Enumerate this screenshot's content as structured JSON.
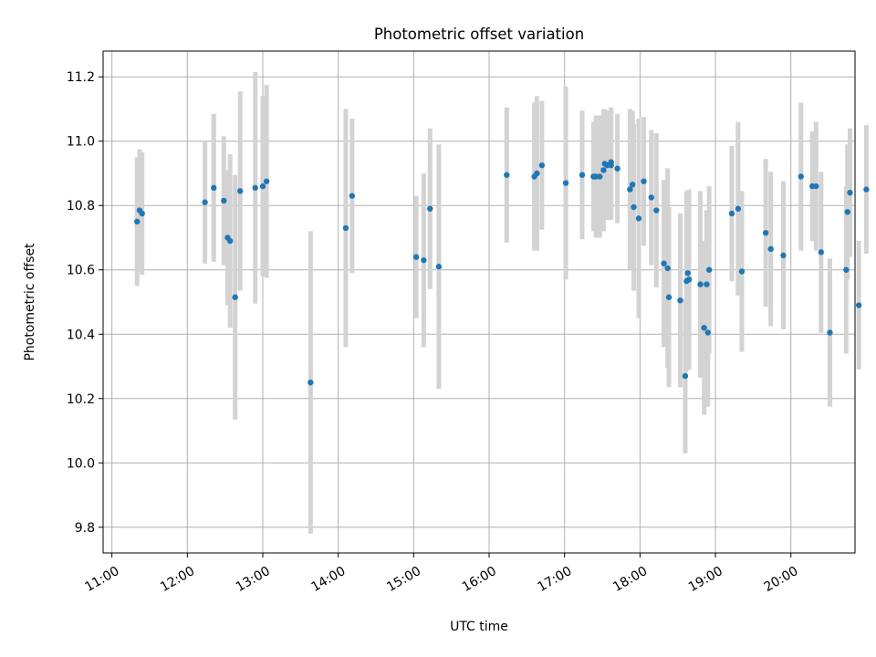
{
  "chart_data": {
    "type": "scatter",
    "title": "Photometric offset variation",
    "xlabel": "UTC time",
    "ylabel": "Photometric offset",
    "xlim": [
      "10:53",
      "20:51"
    ],
    "ylim": [
      9.72,
      11.28
    ],
    "x_ticks": [
      "11:00",
      "12:00",
      "13:00",
      "14:00",
      "15:00",
      "16:00",
      "17:00",
      "18:00",
      "19:00",
      "20:00"
    ],
    "y_ticks": [
      9.8,
      10.0,
      10.2,
      10.4,
      10.6,
      10.8,
      11.0,
      11.2
    ],
    "grid": true,
    "colors": {
      "point": "#1f77b4",
      "errorbar": "#d3d3d3",
      "grid": "#b0b0b0"
    },
    "series": [
      {
        "x": [
          "11:20",
          "11:22",
          "11:24",
          "12:14",
          "12:21",
          "12:29",
          "12:32",
          "12:34",
          "12:38",
          "12:42",
          "12:54",
          "13:00",
          "13:03",
          "13:38",
          "14:06",
          "14:11",
          "15:02",
          "15:08",
          "15:13",
          "15:20",
          "16:14",
          "16:36",
          "16:38",
          "16:42",
          "17:01",
          "17:14",
          "17:23",
          "17:25",
          "17:28",
          "17:31",
          "17:32",
          "17:34",
          "17:37",
          "17:37",
          "17:42",
          "17:52",
          "17:54",
          "17:55",
          "17:59",
          "18:03",
          "18:09",
          "18:13",
          "18:19",
          "18:22",
          "18:23",
          "18:32",
          "18:36",
          "18:37",
          "18:38",
          "18:39",
          "18:48",
          "18:51",
          "18:53",
          "18:54",
          "18:55",
          "19:13",
          "19:18",
          "19:21",
          "19:40",
          "19:44",
          "19:54",
          "20:08",
          "20:17",
          "20:20",
          "20:24",
          "20:31",
          "20:44",
          "20:45",
          "20:47",
          "20:54",
          "21:00"
        ],
        "y": [
          10.75,
          10.785,
          10.775,
          10.81,
          10.855,
          10.815,
          10.7,
          10.69,
          10.515,
          10.845,
          10.855,
          10.86,
          10.875,
          10.25,
          10.73,
          10.83,
          10.64,
          10.63,
          10.79,
          10.61,
          10.895,
          10.89,
          10.9,
          10.925,
          10.87,
          10.895,
          10.89,
          10.89,
          10.89,
          10.91,
          10.93,
          10.925,
          10.925,
          10.935,
          10.915,
          10.85,
          10.865,
          10.795,
          10.76,
          10.875,
          10.825,
          10.785,
          10.62,
          10.605,
          10.515,
          10.505,
          10.27,
          10.565,
          10.59,
          10.57,
          10.555,
          10.42,
          10.555,
          10.405,
          10.6,
          10.775,
          10.79,
          10.595,
          10.715,
          10.665,
          10.645,
          10.89,
          10.86,
          10.86,
          10.655,
          10.405,
          10.6,
          10.78,
          10.84,
          10.49,
          10.85
        ],
        "yerr": [
          0.2,
          0.19,
          0.19,
          0.19,
          0.23,
          0.2,
          0.21,
          0.27,
          0.38,
          0.31,
          0.36,
          0.28,
          0.3,
          0.47,
          0.37,
          0.24,
          0.19,
          0.27,
          0.25,
          0.38,
          0.21,
          0.23,
          0.24,
          0.2,
          0.3,
          0.2,
          0.17,
          0.19,
          0.19,
          0.19,
          0.17,
          0.17,
          0.17,
          0.17,
          0.17,
          0.25,
          0.23,
          0.26,
          0.31,
          0.2,
          0.21,
          0.24,
          0.26,
          0.31,
          0.28,
          0.27,
          0.24,
          0.28,
          0.25,
          0.28,
          0.29,
          0.27,
          0.23,
          0.23,
          0.26,
          0.21,
          0.27,
          0.25,
          0.23,
          0.24,
          0.23,
          0.23,
          0.17,
          0.2,
          0.25,
          0.23,
          0.26,
          0.21,
          0.2,
          0.2,
          0.2
        ]
      }
    ]
  }
}
